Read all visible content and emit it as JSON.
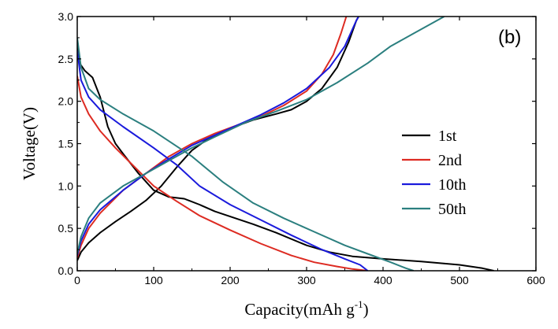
{
  "chart_data": {
    "type": "line",
    "panel_label": "(b)",
    "xlabel": "Capacity(mAh g",
    "xlabel_superscript": "-1",
    "xlabel_suffix": ")",
    "ylabel": "Voltage(V)",
    "xlim": [
      0,
      600
    ],
    "ylim": [
      0.0,
      3.0
    ],
    "x_ticks": [
      "0",
      "100",
      "200",
      "300",
      "400",
      "500",
      "600"
    ],
    "y_ticks": [
      "0.0",
      "0.5",
      "1.0",
      "1.5",
      "2.0",
      "2.5",
      "3.0"
    ],
    "grid": false,
    "legend_position": "right",
    "series": [
      {
        "name": "1st",
        "color": "#000000",
        "discharge": [
          [
            0,
            2.7
          ],
          [
            3,
            2.45
          ],
          [
            10,
            2.36
          ],
          [
            20,
            2.28
          ],
          [
            30,
            2.05
          ],
          [
            40,
            1.7
          ],
          [
            50,
            1.5
          ],
          [
            60,
            1.38
          ],
          [
            80,
            1.15
          ],
          [
            100,
            0.95
          ],
          [
            120,
            0.87
          ],
          [
            140,
            0.85
          ],
          [
            160,
            0.78
          ],
          [
            180,
            0.7
          ],
          [
            200,
            0.64
          ],
          [
            230,
            0.55
          ],
          [
            260,
            0.45
          ],
          [
            300,
            0.3
          ],
          [
            330,
            0.22
          ],
          [
            360,
            0.17
          ],
          [
            400,
            0.14
          ],
          [
            450,
            0.11
          ],
          [
            500,
            0.07
          ],
          [
            530,
            0.03
          ],
          [
            545,
            0.0
          ]
        ],
        "charge": [
          [
            0,
            0.12
          ],
          [
            5,
            0.22
          ],
          [
            15,
            0.33
          ],
          [
            30,
            0.45
          ],
          [
            50,
            0.58
          ],
          [
            70,
            0.7
          ],
          [
            90,
            0.83
          ],
          [
            110,
            1.0
          ],
          [
            130,
            1.22
          ],
          [
            150,
            1.42
          ],
          [
            170,
            1.55
          ],
          [
            200,
            1.68
          ],
          [
            230,
            1.78
          ],
          [
            260,
            1.85
          ],
          [
            280,
            1.9
          ],
          [
            300,
            2.0
          ],
          [
            320,
            2.15
          ],
          [
            340,
            2.4
          ],
          [
            355,
            2.7
          ],
          [
            365,
            2.95
          ],
          [
            368,
            3.0
          ]
        ]
      },
      {
        "name": "2nd",
        "color": "#dd2b22",
        "discharge": [
          [
            0,
            2.3
          ],
          [
            5,
            2.05
          ],
          [
            15,
            1.85
          ],
          [
            30,
            1.65
          ],
          [
            50,
            1.45
          ],
          [
            80,
            1.18
          ],
          [
            100,
            1.0
          ],
          [
            130,
            0.82
          ],
          [
            160,
            0.65
          ],
          [
            200,
            0.48
          ],
          [
            240,
            0.32
          ],
          [
            280,
            0.18
          ],
          [
            310,
            0.1
          ],
          [
            340,
            0.05
          ],
          [
            360,
            0.02
          ],
          [
            380,
            0.0
          ]
        ],
        "charge": [
          [
            0,
            0.15
          ],
          [
            5,
            0.3
          ],
          [
            15,
            0.5
          ],
          [
            30,
            0.68
          ],
          [
            60,
            0.95
          ],
          [
            90,
            1.15
          ],
          [
            120,
            1.35
          ],
          [
            150,
            1.5
          ],
          [
            180,
            1.62
          ],
          [
            210,
            1.72
          ],
          [
            240,
            1.82
          ],
          [
            270,
            1.95
          ],
          [
            300,
            2.12
          ],
          [
            320,
            2.32
          ],
          [
            335,
            2.55
          ],
          [
            345,
            2.8
          ],
          [
            352,
            3.0
          ]
        ]
      },
      {
        "name": "10th",
        "color": "#1a1adc",
        "discharge": [
          [
            0,
            2.6
          ],
          [
            5,
            2.25
          ],
          [
            15,
            2.05
          ],
          [
            30,
            1.9
          ],
          [
            60,
            1.7
          ],
          [
            100,
            1.45
          ],
          [
            130,
            1.25
          ],
          [
            160,
            1.0
          ],
          [
            200,
            0.78
          ],
          [
            240,
            0.6
          ],
          [
            280,
            0.42
          ],
          [
            320,
            0.25
          ],
          [
            350,
            0.14
          ],
          [
            370,
            0.07
          ],
          [
            380,
            0.0
          ]
        ],
        "charge": [
          [
            0,
            0.18
          ],
          [
            5,
            0.35
          ],
          [
            15,
            0.55
          ],
          [
            30,
            0.72
          ],
          [
            60,
            0.95
          ],
          [
            90,
            1.15
          ],
          [
            120,
            1.32
          ],
          [
            150,
            1.48
          ],
          [
            180,
            1.6
          ],
          [
            210,
            1.72
          ],
          [
            240,
            1.84
          ],
          [
            270,
            1.98
          ],
          [
            300,
            2.15
          ],
          [
            330,
            2.4
          ],
          [
            350,
            2.65
          ],
          [
            365,
            2.95
          ],
          [
            368,
            3.0
          ]
        ]
      },
      {
        "name": "50th",
        "color": "#2b7f7f",
        "discharge": [
          [
            0,
            2.75
          ],
          [
            5,
            2.4
          ],
          [
            15,
            2.15
          ],
          [
            30,
            2.02
          ],
          [
            60,
            1.85
          ],
          [
            100,
            1.65
          ],
          [
            150,
            1.35
          ],
          [
            190,
            1.05
          ],
          [
            230,
            0.8
          ],
          [
            270,
            0.62
          ],
          [
            310,
            0.46
          ],
          [
            350,
            0.3
          ],
          [
            380,
            0.2
          ],
          [
            410,
            0.1
          ],
          [
            430,
            0.03
          ],
          [
            440,
            0.0
          ]
        ],
        "charge": [
          [
            0,
            0.2
          ],
          [
            5,
            0.4
          ],
          [
            15,
            0.62
          ],
          [
            30,
            0.8
          ],
          [
            60,
            1.0
          ],
          [
            90,
            1.15
          ],
          [
            120,
            1.3
          ],
          [
            150,
            1.45
          ],
          [
            180,
            1.58
          ],
          [
            220,
            1.75
          ],
          [
            260,
            1.88
          ],
          [
            300,
            2.02
          ],
          [
            340,
            2.22
          ],
          [
            380,
            2.45
          ],
          [
            410,
            2.65
          ],
          [
            440,
            2.8
          ],
          [
            470,
            2.95
          ],
          [
            480,
            3.0
          ]
        ]
      }
    ]
  }
}
